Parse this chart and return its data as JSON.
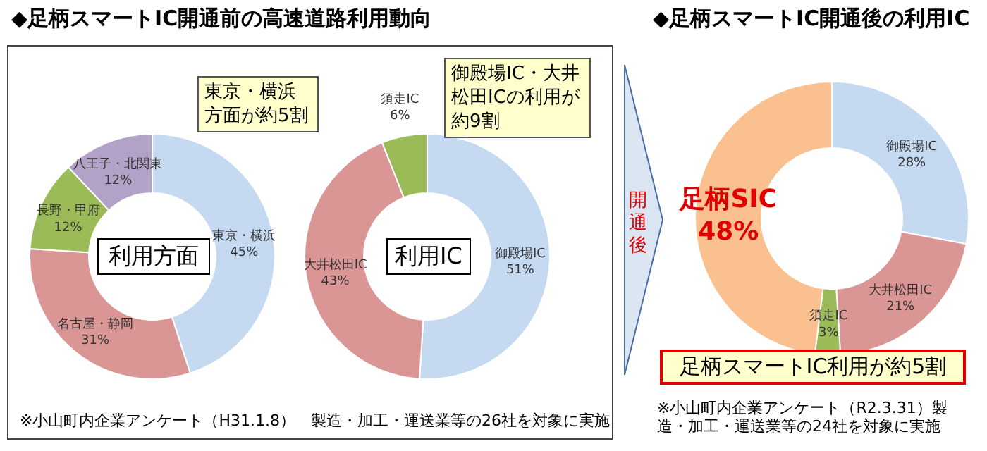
{
  "chart_data": [
    {
      "type": "donut",
      "title": "◆足柄スマートIC開通前の高速道路利用動向",
      "categories": [
        "東京・横浜",
        "名古屋・静岡",
        "長野・甲府",
        "八王子・北関東"
      ],
      "values": [
        45,
        31,
        12,
        12
      ],
      "value_labels": [
        "45%",
        "31%",
        "12%",
        "12%"
      ],
      "colors": [
        "#c5d9f1",
        "#da9694",
        "#9bbb59",
        "#b3a2c7"
      ],
      "legend": false,
      "annotations": [
        "利用方面",
        "東京・横浜方面が約5割",
        "※小山町内企業アンケート（H31.1.8）　製造・加工・運送業等の26社を対象に実施"
      ]
    },
    {
      "type": "donut",
      "categories": [
        "御殿場IC",
        "大井松田IC",
        "須走IC"
      ],
      "values": [
        51,
        43,
        6
      ],
      "value_labels": [
        "51%",
        "43%",
        "6%"
      ],
      "colors": [
        "#c5d9f1",
        "#da9694",
        "#9bbb59"
      ],
      "legend": false,
      "annotations": [
        "利用IC",
        "御殿場IC・大井松田ICの利用が約9割"
      ]
    },
    {
      "type": "donut",
      "title": "◆足柄スマートIC開通後の利用IC",
      "categories": [
        "御殿場IC",
        "大井松田IC",
        "須走IC",
        "足柄SIC"
      ],
      "values": [
        28,
        21,
        3,
        48
      ],
      "value_labels": [
        "28%",
        "21%",
        "3%",
        "48%"
      ],
      "colors": [
        "#c5d9f1",
        "#da9694",
        "#9bbb59",
        "#fac090"
      ],
      "legend": false,
      "annotations": [
        "開通後",
        "足柄スマートIC利用が約5割",
        "※小山町内企業アンケート（R2.3.31）製造・加工・運送業等の24社を対象に実施"
      ]
    }
  ]
}
